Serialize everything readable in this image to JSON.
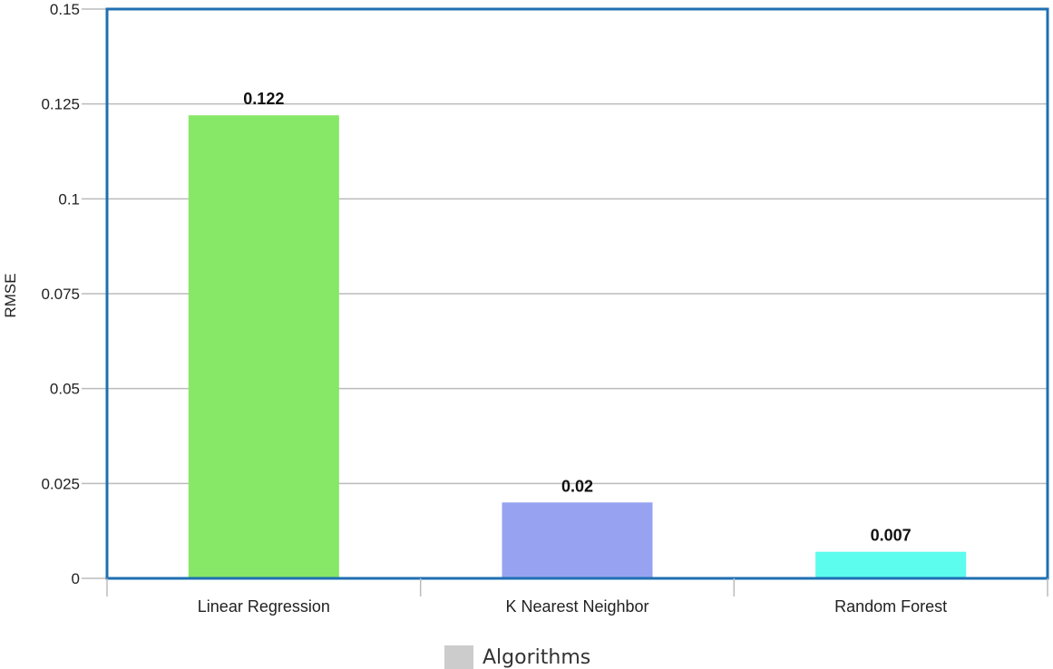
{
  "chart_data": {
    "type": "bar",
    "categories": [
      "Linear Regression",
      "K Nearest Neighbor",
      "Random Forest"
    ],
    "values": [
      0.122,
      0.02,
      0.007
    ],
    "data_labels": [
      "0.122",
      "0.02",
      "0.007"
    ],
    "bar_colors": [
      "#86e866",
      "#97a3f1",
      "#5cfcee"
    ],
    "xlabel": "",
    "ylabel": "RMSE",
    "ylim": [
      0,
      0.15
    ],
    "yticks": [
      0,
      0.025,
      0.05,
      0.075,
      0.1,
      0.125,
      0.15
    ],
    "ytick_labels": [
      "0",
      "0.025",
      "0.05",
      "0.075",
      "0.1",
      "0.125",
      "0.15"
    ],
    "grid": true,
    "legend": {
      "position": "bottom",
      "entries": [
        {
          "label": "Algorithms",
          "color": "#cccccc"
        }
      ]
    },
    "plot_border_color": "#1f6fb2",
    "gridline_color": "#bbbbbb"
  }
}
